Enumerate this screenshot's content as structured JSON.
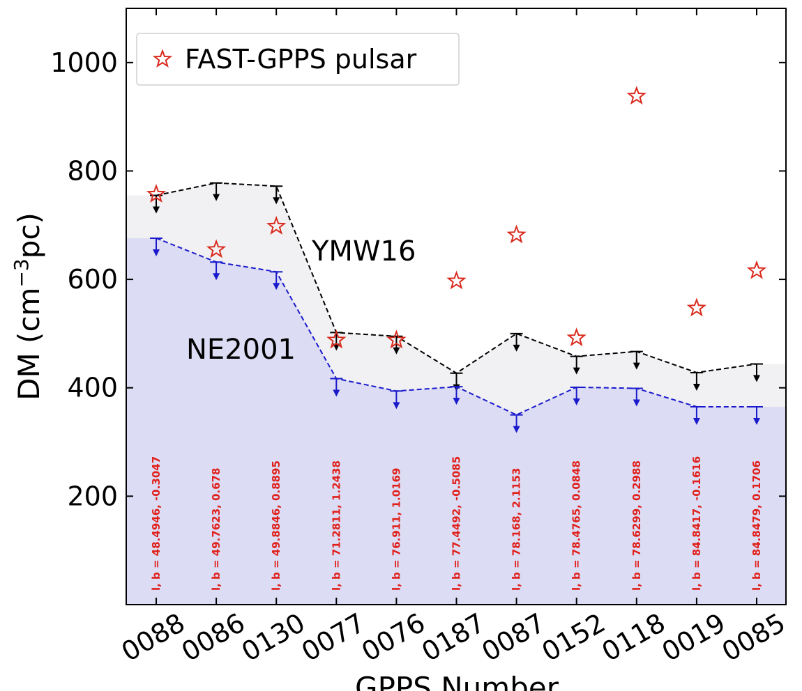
{
  "chart_data": {
    "type": "scatter",
    "xlabel": "GPPS Number",
    "ylabel": "DM (cm",
    "ylabel_sup": "−3",
    "ylabel_tail": "pc)",
    "ylim": [
      0,
      1100
    ],
    "yticks": [
      200,
      400,
      600,
      800,
      1000
    ],
    "categories": [
      "0088",
      "0086",
      "0130",
      "0077",
      "0076",
      "0187",
      "0087",
      "0152",
      "0118",
      "0019",
      "0085"
    ],
    "series": [
      {
        "name": "FAST-GPPS pulsar",
        "marker": "star",
        "color": "#d9291c",
        "values": [
          757,
          655,
          698,
          488,
          488,
          597,
          682,
          492,
          938,
          547,
          616
        ]
      },
      {
        "name": "YMW16",
        "style": "dashed upper-limit",
        "color": "#000000",
        "values": [
          755,
          778,
          772,
          502,
          495,
          427,
          500,
          458,
          467,
          428,
          444
        ]
      },
      {
        "name": "NE2001",
        "style": "dashed upper-limit",
        "color": "#1a1acc",
        "values": [
          676,
          632,
          614,
          417,
          394,
          402,
          350,
          401,
          399,
          365,
          365
        ]
      }
    ],
    "annotations": [
      "l, b = 48.4946, -0.3047",
      "l, b = 49.7623, 0.678",
      "l, b = 49.8846, 0.8895",
      "l, b = 71.2811, 1.2438",
      "l, b = 76.911, 1.0169",
      "l, b = 77.4492, -0.5085",
      "l, b = 78.168, 2.1153",
      "l, b = 78.4765, 0.0848",
      "l, b = 78.6299, 0.2988",
      "l, b = 84.8417, -0.1616",
      "l, b = 84.8479, 0.1706"
    ],
    "series_labels": {
      "ymw16": "YMW16",
      "ne2001": "NE2001"
    },
    "legend": {
      "label": "FAST-GPPS pulsar",
      "position": "top-left"
    },
    "colors": {
      "ymw16_fill": "#f1f1f3",
      "ne2001_fill": "#dcdcf4",
      "star": "#d9291c",
      "ymw16": "#000000",
      "ne2001": "#1a1acc"
    }
  }
}
